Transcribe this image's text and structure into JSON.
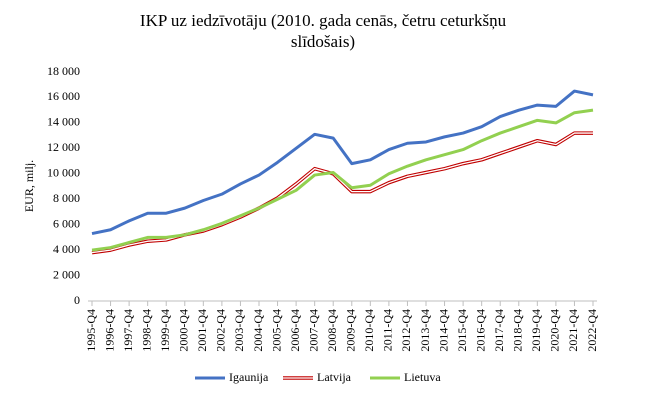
{
  "chart_data": {
    "type": "line",
    "title": [
      "IKP uz iedzīvotāju (2010. gada cenās, četru ceturkšņu",
      "slīdošais)"
    ],
    "ylabel": "EUR, milj.",
    "categories": [
      "1995-Q4",
      "1996-Q4",
      "1997-Q4",
      "1998-Q4",
      "1999-Q4",
      "2000-Q4",
      "2001-Q4",
      "2002-Q4",
      "2003-Q4",
      "2004-Q4",
      "2005-Q4",
      "2006-Q4",
      "2007-Q4",
      "2008-Q4",
      "2009-Q4",
      "2010-Q4",
      "2011-Q4",
      "2012-Q4",
      "2013-Q4",
      "2014-Q4",
      "2015-Q4",
      "2016-Q4",
      "2017-Q4",
      "2018-Q4",
      "2019-Q4",
      "2020-Q4",
      "2021-Q4",
      "2022-Q4"
    ],
    "series": [
      {
        "name": "Igaunija",
        "color": "#4472c4",
        "values": [
          5300,
          5600,
          6300,
          6900,
          6900,
          7300,
          7900,
          8400,
          9200,
          9900,
          10900,
          12000,
          13100,
          12800,
          10800,
          11100,
          11900,
          12400,
          12500,
          12900,
          13200,
          13700,
          14500,
          15000,
          15400,
          15300,
          16500,
          16200
        ]
      },
      {
        "name": "Latvija",
        "color": "#c00000",
        "values": [
          3800,
          4000,
          4400,
          4700,
          4800,
          5200,
          5500,
          6000,
          6600,
          7300,
          8100,
          9200,
          10400,
          10000,
          8600,
          8600,
          9300,
          9800,
          10100,
          10400,
          10800,
          11100,
          11600,
          12100,
          12600,
          12300,
          13200,
          13200
        ]
      },
      {
        "name": "Lietuva",
        "color": "#92d050",
        "values": [
          4000,
          4200,
          4600,
          5000,
          5000,
          5200,
          5600,
          6100,
          6700,
          7300,
          8000,
          8700,
          9900,
          10100,
          8900,
          9100,
          10000,
          10600,
          11100,
          11500,
          11900,
          12600,
          13200,
          13700,
          14200,
          14000,
          14800,
          15000
        ]
      }
    ],
    "ylim": [
      0,
      18000
    ],
    "yticks": [
      0,
      {
        "value": 2000,
        "label": "2 000"
      },
      {
        "value": 4000,
        "label": "4 000"
      },
      {
        "value": 6000,
        "label": "6 000"
      },
      {
        "value": 8000,
        "label": "8 000"
      },
      {
        "value": 10000,
        "label": "10 000"
      },
      {
        "value": 12000,
        "label": "12 000"
      },
      {
        "value": 14000,
        "label": "14 000"
      },
      {
        "value": 16000,
        "label": "16 000"
      },
      {
        "value": 18000,
        "label": "18 000"
      }
    ],
    "grid": false,
    "legend": "bottom"
  }
}
